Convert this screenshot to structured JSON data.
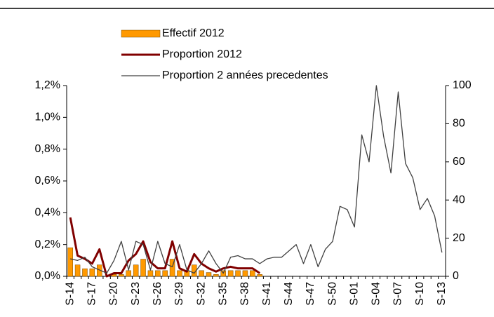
{
  "chart_data": {
    "type": "bar",
    "categories": [
      "S-14",
      null,
      null,
      "S-17",
      null,
      null,
      "S-20",
      null,
      null,
      "S-23",
      null,
      null,
      "S-26",
      null,
      null,
      "S-29",
      null,
      null,
      "S-32",
      null,
      null,
      "S-35",
      null,
      null,
      "S-38",
      null,
      null,
      "S-41",
      null,
      null,
      "S-44",
      null,
      null,
      "S-47",
      null,
      null,
      "S-50",
      null,
      null,
      "S-01",
      null,
      null,
      "S-04",
      null,
      null,
      "S-07",
      null,
      null,
      "S-10",
      null,
      null,
      "S-13"
    ],
    "series": [
      {
        "name": "Effectif 2012",
        "type": "bar",
        "axis": "y2",
        "color": "#ff9900",
        "values": [
          15,
          6,
          4,
          4,
          6,
          0,
          1,
          1,
          3,
          6,
          9,
          3,
          3,
          3,
          9,
          3,
          3,
          6,
          3,
          2,
          1,
          3,
          3,
          3,
          3,
          3,
          1,
          null,
          null,
          null,
          null,
          null,
          null,
          null,
          null,
          null,
          null,
          null,
          null,
          null,
          null,
          null,
          null,
          null,
          null,
          null,
          null,
          null,
          null,
          null,
          null,
          null
        ]
      },
      {
        "name": "Proportion 2012",
        "type": "line",
        "color": "#800000",
        "values": [
          0.37,
          0.13,
          0.11,
          0.08,
          0.17,
          0.0,
          0.02,
          0.02,
          0.1,
          0.14,
          0.22,
          0.09,
          0.05,
          0.05,
          0.22,
          0.05,
          0.03,
          0.14,
          0.08,
          0.05,
          0.03,
          0.05,
          0.06,
          0.05,
          0.05,
          0.05,
          0.02,
          null,
          null,
          null,
          null,
          null,
          null,
          null,
          null,
          null,
          null,
          null,
          null,
          null,
          null,
          null,
          null,
          null,
          null,
          null,
          null,
          null,
          null,
          null,
          null,
          null
        ]
      },
      {
        "name": "Proportion 2 années precedentes",
        "type": "line",
        "color": "#404040",
        "values": [
          0.11,
          0.1,
          0.12,
          0.06,
          0.04,
          0.02,
          0.1,
          0.22,
          0.04,
          0.22,
          0.2,
          0.04,
          0.22,
          0.08,
          0.06,
          0.2,
          0.04,
          0.02,
          0.08,
          0.16,
          0.08,
          0.02,
          0.12,
          0.13,
          0.11,
          0.11,
          0.08,
          0.11,
          0.12,
          0.12,
          0.16,
          0.2,
          0.08,
          0.2,
          0.06,
          0.17,
          0.22,
          0.44,
          0.42,
          0.31,
          0.89,
          0.72,
          1.2,
          0.88,
          0.65,
          1.16,
          0.71,
          0.62,
          0.42,
          0.49,
          0.38,
          0.15
        ]
      }
    ],
    "ylim": [
      0,
      1.2
    ],
    "yticks": [
      {
        "value": 0,
        "label": "0,0%"
      },
      {
        "value": 0.2,
        "label": "0,2%"
      },
      {
        "value": 0.4,
        "label": "0,4%"
      },
      {
        "value": 0.6,
        "label": "0,6%"
      },
      {
        "value": 0.8,
        "label": "0,8%"
      },
      {
        "value": 1.0,
        "label": "1,0%"
      },
      {
        "value": 1.2,
        "label": "1,2%"
      }
    ],
    "y2lim": [
      0,
      100
    ],
    "y2ticks": [
      0,
      20,
      40,
      60,
      80,
      100
    ],
    "legend": "top",
    "grid": false
  }
}
